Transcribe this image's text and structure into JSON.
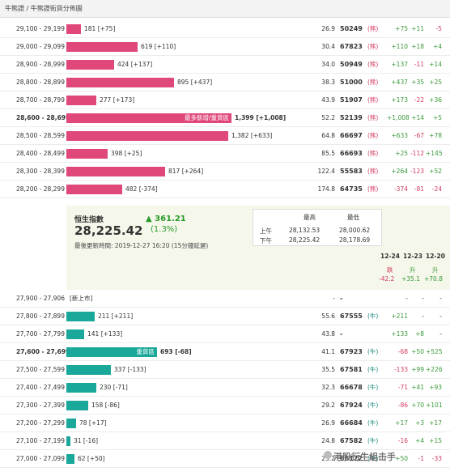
{
  "breadcrumb": "牛熊證 / 牛熊證街貨分佈圖",
  "bull_rows": [
    {
      "range": "29,100 - 29,199",
      "qty": "181 [+75]",
      "frac": 0.09,
      "ratio": "26.9",
      "code": "50249",
      "type": "(熊)",
      "c1": "+75",
      "c1s": "pos",
      "c2": "+11",
      "c2s": "pos",
      "c3": "-5",
      "c3s": "neg"
    },
    {
      "range": "29,000 - 29,099",
      "qty": "619 [+110]",
      "frac": 0.43,
      "ratio": "30.4",
      "code": "67823",
      "type": "(熊)",
      "c1": "+110",
      "c1s": "pos",
      "c2": "+18",
      "c2s": "pos",
      "c3": "+4",
      "c3s": "pos"
    },
    {
      "range": "28,900 - 28,999",
      "qty": "424 [+137]",
      "frac": 0.29,
      "ratio": "34.0",
      "code": "50949",
      "type": "(熊)",
      "c1": "+137",
      "c1s": "pos",
      "c2": "-11",
      "c2s": "neg",
      "c3": "+14",
      "c3s": "pos"
    },
    {
      "range": "28,800 - 28,899",
      "qty": "895 [+437]",
      "frac": 0.65,
      "ratio": "38.3",
      "code": "51000",
      "type": "(熊)",
      "c1": "+437",
      "c1s": "pos",
      "c2": "+35",
      "c2s": "pos",
      "c3": "+25",
      "c3s": "pos"
    },
    {
      "range": "28,700 - 28,799",
      "qty": "277 [+173]",
      "frac": 0.18,
      "ratio": "43.9",
      "code": "51907",
      "type": "(熊)",
      "c1": "+173",
      "c1s": "pos",
      "c2": "-22",
      "c2s": "neg",
      "c3": "+36",
      "c3s": "pos"
    },
    {
      "range": "28,600 - 28,699",
      "qty": "1,399 [+1,008]",
      "frac": 1.0,
      "ratio": "52.2",
      "code": "52139",
      "type": "(熊)",
      "c1": "+1,008",
      "c1s": "pos",
      "c2": "+14",
      "c2s": "pos",
      "c3": "+5",
      "c3s": "pos",
      "bold": true,
      "label": "最多新增/重貨區"
    },
    {
      "range": "28,500 - 28,599",
      "qty": "1,382 [+633]",
      "frac": 0.98,
      "ratio": "64.8",
      "code": "66697",
      "type": "(熊)",
      "c1": "+633",
      "c1s": "pos",
      "c2": "-67",
      "c2s": "neg",
      "c3": "+78",
      "c3s": "pos"
    },
    {
      "range": "28,400 - 28,499",
      "qty": "398 [+25]",
      "frac": 0.25,
      "ratio": "85.5",
      "code": "66693",
      "type": "(熊)",
      "c1": "+25",
      "c1s": "pos",
      "c2": "-112",
      "c2s": "neg",
      "c3": "+145",
      "c3s": "pos"
    },
    {
      "range": "28,300 - 28,399",
      "qty": "817 [+264]",
      "frac": 0.6,
      "ratio": "122.4",
      "code": "55583",
      "type": "(熊)",
      "c1": "+264",
      "c1s": "pos",
      "c2": "-123",
      "c2s": "neg",
      "c3": "+52",
      "c3s": "pos"
    },
    {
      "range": "28,200 - 28,299",
      "qty": "482 [-374]",
      "frac": 0.34,
      "ratio": "174.8",
      "code": "64735",
      "type": "(熊)",
      "c1": "-374",
      "c1s": "neg",
      "c2": "-81",
      "c2s": "neg",
      "c3": "-24",
      "c3s": "neg"
    }
  ],
  "index": {
    "title": "恒生指數",
    "value": "28,225.42",
    "change": "▲ 361.21",
    "pct": "(1.3%)",
    "update": "最後更新時間: 2019-12-27 16:20 (15分鐘延遲)",
    "hl_head_high": "最高",
    "hl_head_low": "最低",
    "am_label": "上午",
    "pm_label": "下午",
    "am_high": "28,132.53",
    "am_low": "28,000.62",
    "pm_high": "28,225.42",
    "pm_low": "28,178.69"
  },
  "dates": {
    "d1": "12-24",
    "d2": "12-23",
    "d3": "12-20",
    "t1": "跌",
    "t2": "升",
    "t3": "升",
    "v1": "-42.2",
    "v2": "+35.1",
    "v3": "+70.8"
  },
  "bear_rows": [
    {
      "range": "27,900 - 27,906",
      "qty": "[新上市]",
      "frac": 0,
      "ratio": "-",
      "code": "-",
      "type": "",
      "c1": "-",
      "c1s": "",
      "c2": "-",
      "c2s": "",
      "c3": "-",
      "c3s": ""
    },
    {
      "range": "27,800 - 27,899",
      "qty": "211 [+211]",
      "frac": 0.17,
      "ratio": "55.6",
      "code": "67555",
      "type": "(牛)",
      "c1": "+211",
      "c1s": "pos",
      "c2": "-",
      "c2s": "",
      "c3": "-",
      "c3s": ""
    },
    {
      "range": "27,700 - 27,799",
      "qty": "141 [+133]",
      "frac": 0.11,
      "ratio": "43.8",
      "code": "-",
      "type": "",
      "c1": "+133",
      "c1s": "pos",
      "c2": "+8",
      "c2s": "pos",
      "c3": "-",
      "c3s": ""
    },
    {
      "range": "27,600 - 27,699",
      "qty": "693 [-68]",
      "frac": 0.55,
      "ratio": "41.1",
      "code": "67923",
      "type": "(牛)",
      "c1": "-68",
      "c1s": "neg",
      "c2": "+50",
      "c2s": "pos",
      "c3": "+525",
      "c3s": "pos",
      "bold": true,
      "label": "重貨區"
    },
    {
      "range": "27,500 - 27,599",
      "qty": "337 [-133]",
      "frac": 0.27,
      "ratio": "35.5",
      "code": "67581",
      "type": "(牛)",
      "c1": "-133",
      "c1s": "neg",
      "c2": "+99",
      "c2s": "pos",
      "c3": "+226",
      "c3s": "pos"
    },
    {
      "range": "27,400 - 27,499",
      "qty": "230 [-71]",
      "frac": 0.18,
      "ratio": "32.3",
      "code": "66678",
      "type": "(牛)",
      "c1": "-71",
      "c1s": "neg",
      "c2": "+41",
      "c2s": "pos",
      "c3": "+93",
      "c3s": "pos"
    },
    {
      "range": "27,300 - 27,399",
      "qty": "158 [-86]",
      "frac": 0.13,
      "ratio": "29.2",
      "code": "67924",
      "type": "(牛)",
      "c1": "-86",
      "c1s": "neg",
      "c2": "+70",
      "c2s": "pos",
      "c3": "+101",
      "c3s": "pos"
    },
    {
      "range": "27,200 - 27,299",
      "qty": "78 [+17]",
      "frac": 0.06,
      "ratio": "26.9",
      "code": "66684",
      "type": "(牛)",
      "c1": "+17",
      "c1s": "pos",
      "c2": "+3",
      "c2s": "pos",
      "c3": "+17",
      "c3s": "pos"
    },
    {
      "range": "27,100 - 27,199",
      "qty": "31 [-16]",
      "frac": 0.025,
      "ratio": "24.8",
      "code": "67582",
      "type": "(牛)",
      "c1": "-16",
      "c1s": "neg",
      "c2": "+4",
      "c2s": "pos",
      "c3": "+15",
      "c3s": "pos"
    },
    {
      "range": "27,000 - 27,099",
      "qty": "62 [+50]",
      "frac": 0.05,
      "ratio": "23.2",
      "code": "66122",
      "type": "(牛)",
      "c1": "+50",
      "c1s": "pos",
      "c2": "-1",
      "c2s": "neg",
      "c3": "-33",
      "c3s": "neg"
    }
  ],
  "watermark": "港股衍生組击手",
  "colors": {
    "bull_bar": "#e0487a",
    "bear_bar": "#1aa89a",
    "positive": "#3a9a3a",
    "negative": "#d23a5e"
  }
}
